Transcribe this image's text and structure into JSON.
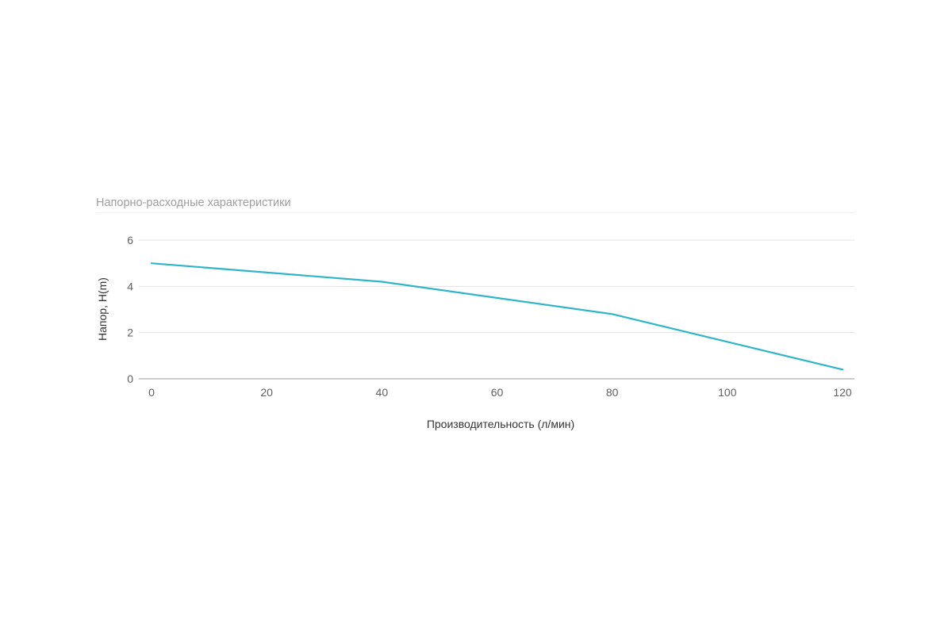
{
  "chart_data": {
    "type": "line",
    "title": "Напорно-расходные характеристики",
    "xlabel": "Производительность (л/мин)",
    "ylabel": "Напор, H(m)",
    "x": [
      0,
      40,
      80,
      120
    ],
    "series": [
      {
        "values": [
          5,
          4.2,
          2.8,
          0.4
        ],
        "color": "#2eb5c9"
      }
    ],
    "xlim": [
      0,
      120
    ],
    "ylim": [
      0,
      6
    ],
    "xticks": [
      "0",
      "20",
      "40",
      "60",
      "80",
      "100",
      "120"
    ],
    "yticks": [
      "0",
      "2",
      "4",
      "6"
    ],
    "grid": true,
    "legend": "none"
  }
}
